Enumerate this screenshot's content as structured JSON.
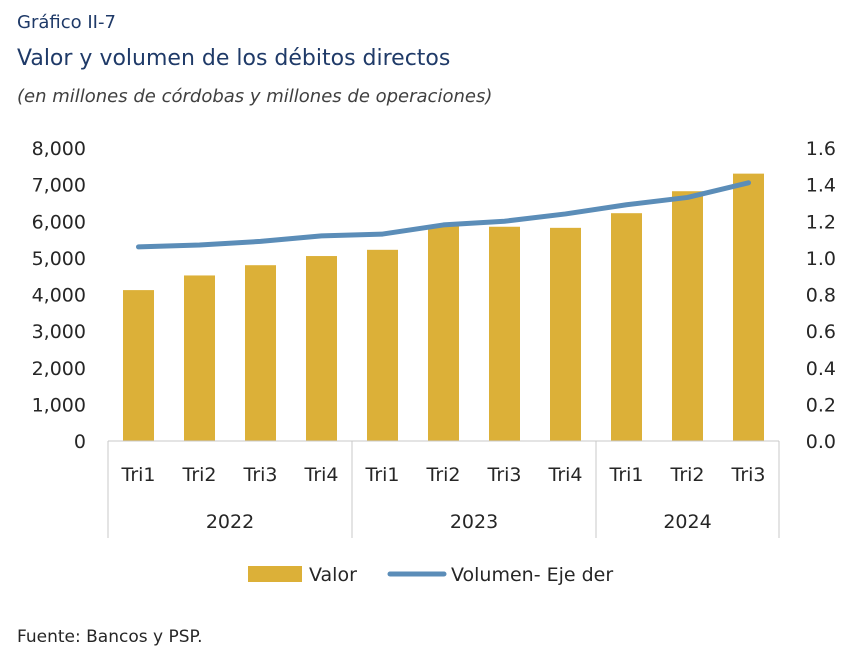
{
  "chart_label": "Gráfico II-7",
  "source": "Fuente: Bancos y PSP.",
  "chart_data": {
    "type": "bar",
    "title": "Valor y volumen de los débitos directos",
    "subtitle": "(en millones de córdobas y millones de operaciones)",
    "categories": [
      "Tri1",
      "Tri2",
      "Tri3",
      "Tri4",
      "Tri1",
      "Tri2",
      "Tri3",
      "Tri4",
      "Tri1",
      "Tri2",
      "Tri3"
    ],
    "groups": [
      {
        "label": "2022",
        "count": 4
      },
      {
        "label": "2023",
        "count": 4
      },
      {
        "label": "2024",
        "count": 3
      }
    ],
    "series": [
      {
        "name": "Valor",
        "type": "bar",
        "axis": "left",
        "color": "#dcb038",
        "values": [
          4120,
          4520,
          4800,
          5050,
          5220,
          5880,
          5850,
          5820,
          6220,
          6820,
          7300
        ]
      },
      {
        "name": "Volumen- Eje der",
        "type": "line",
        "axis": "right",
        "color": "#5b8db8",
        "values": [
          1.06,
          1.07,
          1.09,
          1.12,
          1.13,
          1.18,
          1.2,
          1.24,
          1.29,
          1.33,
          1.41
        ]
      }
    ],
    "ylim": [
      0,
      8000
    ],
    "yticks": [
      "0",
      "1,000",
      "2,000",
      "3,000",
      "4,000",
      "5,000",
      "6,000",
      "7,000",
      "8,000"
    ],
    "y2lim": [
      0,
      1.6
    ],
    "y2ticks": [
      "0.0",
      "0.2",
      "0.4",
      "0.6",
      "0.8",
      "1.0",
      "1.2",
      "1.4",
      "1.6"
    ],
    "grid": false,
    "legend": "bottom"
  }
}
